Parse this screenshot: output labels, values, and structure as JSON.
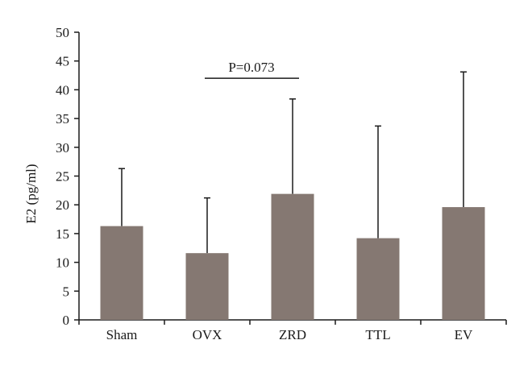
{
  "chart_data": {
    "type": "bar",
    "categories": [
      "Sham",
      "OVX",
      "ZRD",
      "TTL",
      "EV"
    ],
    "values": [
      16.3,
      11.6,
      21.9,
      14.2,
      19.6
    ],
    "error_upper": [
      26.3,
      21.2,
      38.4,
      33.7,
      43.1
    ],
    "title": "",
    "xlabel": "",
    "ylabel": "E2 (pg/ml)",
    "ylim": [
      0,
      50
    ],
    "yticks": [
      0,
      5,
      10,
      15,
      20,
      25,
      30,
      35,
      40,
      45,
      50
    ],
    "grid": false,
    "legend": "none",
    "bar_color": "#857872",
    "annotation": {
      "text": "P=0.073",
      "from_category": "OVX",
      "to_category": "ZRD",
      "y": 42
    }
  }
}
